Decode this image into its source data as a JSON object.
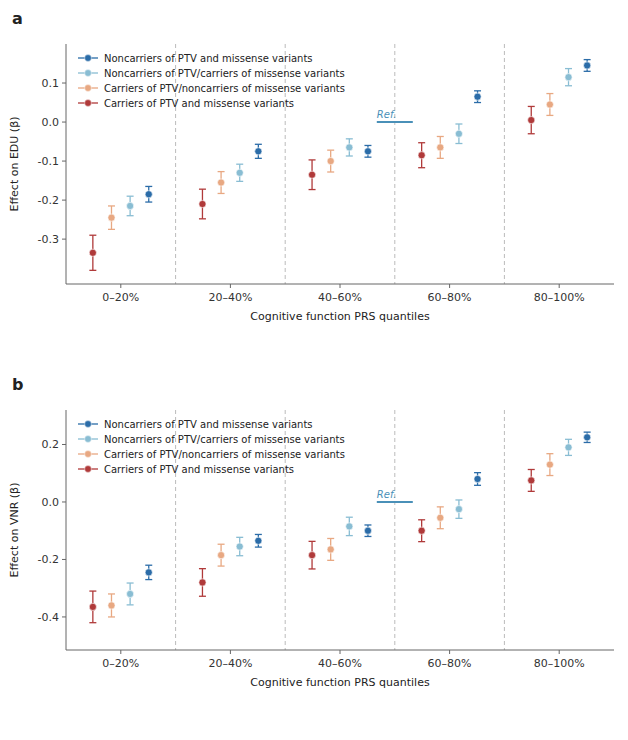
{
  "chart_data": [
    {
      "type": "errorbar",
      "title": "a",
      "ylabel": "Effect on EDU (β)",
      "xlabel": "Cognitive function PRS quantiles",
      "categories": [
        "0–20%",
        "20–40%",
        "40–60%",
        "60–80%",
        "80–100%"
      ],
      "series": [
        {
          "name": "Noncarriers of PTV and missense variants",
          "color": "#2B6CA8",
          "values": [
            -0.185,
            -0.075,
            -0.075,
            0.065,
            0.145
          ],
          "error_low": [
            0.02,
            0.018,
            0.015,
            0.015,
            0.015
          ],
          "error_high": [
            0.02,
            0.018,
            0.015,
            0.015,
            0.015
          ]
        },
        {
          "name": "Noncarriers of PTV/carriers of missense variants",
          "color": "#89BDD3",
          "values": [
            -0.215,
            -0.13,
            -0.065,
            -0.03,
            0.115
          ],
          "error_low": [
            0.025,
            0.022,
            0.022,
            0.025,
            0.022
          ],
          "error_high": [
            0.025,
            0.022,
            0.022,
            0.025,
            0.022
          ]
        },
        {
          "name": "Carriers of PTV/noncarriers of missense variants",
          "color": "#E8A882",
          "values": [
            -0.245,
            -0.155,
            -0.1,
            -0.065,
            0.045
          ],
          "error_low": [
            0.03,
            0.028,
            0.028,
            0.028,
            0.028
          ],
          "error_high": [
            0.03,
            0.028,
            0.028,
            0.028,
            0.028
          ]
        },
        {
          "name": "Carriers of PTV and missense variants",
          "color": "#B03A3A",
          "values": [
            -0.335,
            -0.21,
            -0.135,
            -0.085,
            0.005
          ],
          "error_low": [
            0.045,
            0.038,
            0.038,
            0.032,
            0.035
          ],
          "error_high": [
            0.045,
            0.038,
            0.038,
            0.032,
            0.035
          ]
        }
      ],
      "annotations": [
        {
          "text": "Ref.",
          "y": 0,
          "color": "#4A90B8"
        }
      ],
      "ylim": [
        -0.415,
        0.2
      ],
      "yticks": [
        -0.3,
        -0.2,
        -0.1,
        {
          "value": 0,
          "label": "0.0"
        },
        0.1
      ],
      "grid": false,
      "legend": "upper left",
      "marker": "circle"
    },
    {
      "type": "errorbar",
      "title": "b",
      "ylabel": "Effect on VNR (β)",
      "xlabel": "Cognitive function PRS quantiles",
      "categories": [
        "0–20%",
        "20–40%",
        "40–60%",
        "60–80%",
        "80–100%"
      ],
      "series": [
        {
          "name": "Noncarriers of PTV and missense variants",
          "color": "#2B6CA8",
          "values": [
            -0.245,
            -0.135,
            -0.1,
            0.08,
            0.225
          ],
          "error_low": [
            0.025,
            0.022,
            0.02,
            0.022,
            0.018
          ],
          "error_high": [
            0.025,
            0.022,
            0.02,
            0.022,
            0.018
          ]
        },
        {
          "name": "Noncarriers of PTV/carriers of missense variants",
          "color": "#89BDD3",
          "values": [
            -0.32,
            -0.155,
            -0.085,
            -0.025,
            0.19
          ],
          "error_low": [
            0.038,
            0.032,
            0.032,
            0.032,
            0.028
          ],
          "error_high": [
            0.038,
            0.032,
            0.032,
            0.032,
            0.028
          ]
        },
        {
          "name": "Carriers of PTV/noncarriers of missense variants",
          "color": "#E8A882",
          "values": [
            -0.36,
            -0.185,
            -0.165,
            -0.055,
            0.13
          ],
          "error_low": [
            0.04,
            0.038,
            0.038,
            0.038,
            0.038
          ],
          "error_high": [
            0.04,
            0.038,
            0.038,
            0.038,
            0.038
          ]
        },
        {
          "name": "Carriers of PTV and missense variants",
          "color": "#B03A3A",
          "values": [
            -0.365,
            -0.28,
            -0.185,
            -0.1,
            0.075
          ],
          "error_low": [
            0.055,
            0.048,
            0.048,
            0.038,
            0.038
          ],
          "error_high": [
            0.055,
            0.048,
            0.048,
            0.038,
            0.038
          ]
        }
      ],
      "annotations": [
        {
          "text": "Ref.",
          "y": 0,
          "color": "#4A90B8"
        }
      ],
      "ylim": [
        -0.515,
        0.32
      ],
      "yticks": [
        -0.4,
        -0.2,
        {
          "value": 0,
          "label": "0.0"
        },
        0.2
      ],
      "grid": false,
      "legend": "upper left",
      "marker": "circle"
    }
  ]
}
